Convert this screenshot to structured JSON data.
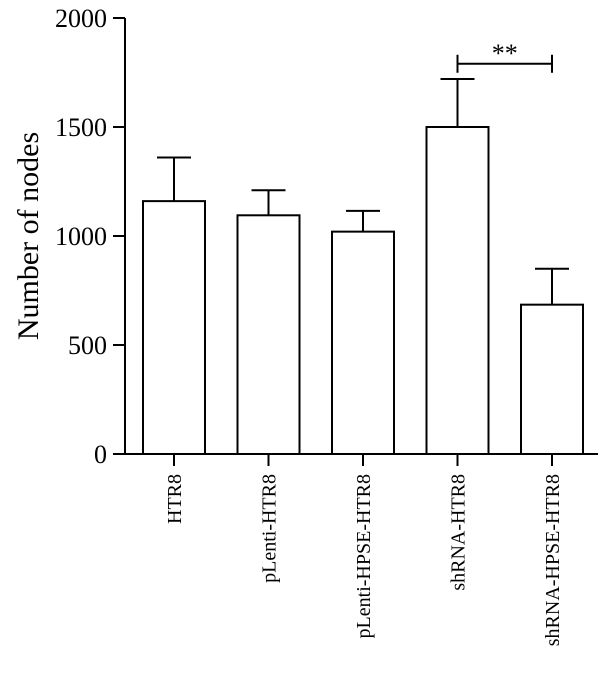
{
  "chart_data": {
    "type": "bar",
    "title": "",
    "xlabel": "",
    "ylabel": "Number of nodes",
    "ylim": [
      0,
      2000
    ],
    "yticks": [
      0,
      500,
      1000,
      1500,
      2000
    ],
    "categories": [
      "HTR8",
      "pLenti-HTR8",
      "pLenti-HPSE-HTR8",
      "shRNA-HTR8",
      "shRNA-HPSE-HTR8"
    ],
    "values": [
      1160,
      1095,
      1020,
      1500,
      685
    ],
    "errors": [
      200,
      115,
      95,
      220,
      165
    ],
    "significance": [
      {
        "from": "shRNA-HTR8",
        "to": "shRNA-HPSE-HTR8",
        "label": "**",
        "y": 1790
      }
    ],
    "grid": false,
    "legend": "none"
  }
}
